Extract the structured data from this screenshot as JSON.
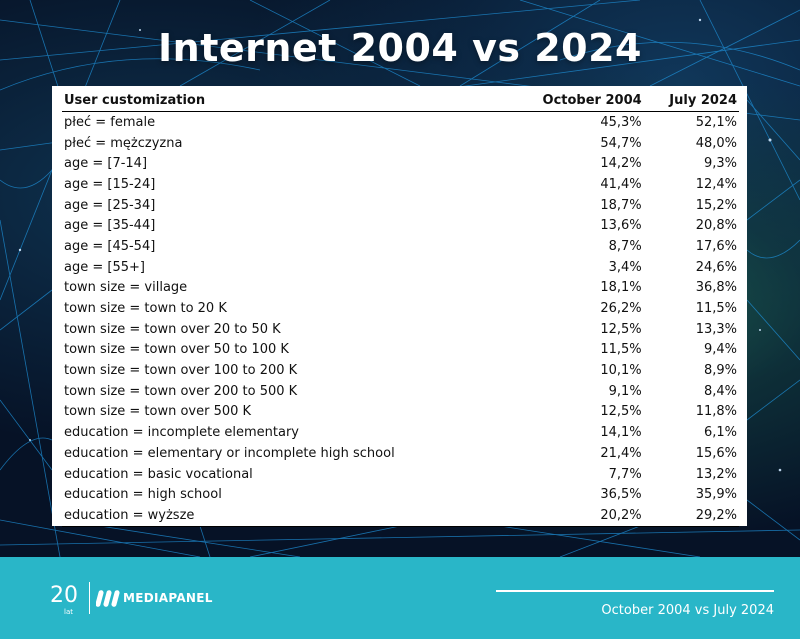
{
  "title": "Internet 2004 vs 2024",
  "table": {
    "headers": [
      "User customization",
      "October 2004",
      "July 2024"
    ],
    "rows": [
      [
        "płeć = female",
        "45,3%",
        "52,1%"
      ],
      [
        "płeć = mężczyzna",
        "54,7%",
        "48,0%"
      ],
      [
        "age = [7-14]",
        "14,2%",
        "9,3%"
      ],
      [
        "age = [15-24]",
        "41,4%",
        "12,4%"
      ],
      [
        "age = [25-34]",
        "18,7%",
        "15,2%"
      ],
      [
        "age = [35-44]",
        "13,6%",
        "20,8%"
      ],
      [
        "age = [45-54]",
        "8,7%",
        "17,6%"
      ],
      [
        "age = [55+]",
        "3,4%",
        "24,6%"
      ],
      [
        "town size = village",
        "18,1%",
        "36,8%"
      ],
      [
        "town size = town to 20 K",
        "26,2%",
        "11,5%"
      ],
      [
        "town size = town over 20 to 50 K",
        "12,5%",
        "13,3%"
      ],
      [
        "town size = town over 50 to 100 K",
        "11,5%",
        "9,4%"
      ],
      [
        "town size = town over 100 to 200 K",
        "10,1%",
        "8,9%"
      ],
      [
        "town size = town over 200 to 500 K",
        "9,1%",
        "8,4%"
      ],
      [
        "town size = town over 500 K",
        "12,5%",
        "11,8%"
      ],
      [
        "education = incomplete elementary",
        "14,1%",
        "6,1%"
      ],
      [
        "education = elementary or incomplete high school",
        "21,4%",
        "15,6%"
      ],
      [
        "education = basic vocational",
        "7,7%",
        "13,2%"
      ],
      [
        "education = high school",
        "36,5%",
        "35,9%"
      ],
      [
        "education = wyższe",
        "20,2%",
        "29,2%"
      ]
    ]
  },
  "footer": {
    "logo_number": "20",
    "logo_sub": "lat",
    "brand": "MEDIAPANEL",
    "caption": "October 2004 vs July 2024"
  },
  "colors": {
    "footer_bg": "#29b6c8",
    "background": "#061226",
    "network_lines": "#1e8fd6"
  }
}
